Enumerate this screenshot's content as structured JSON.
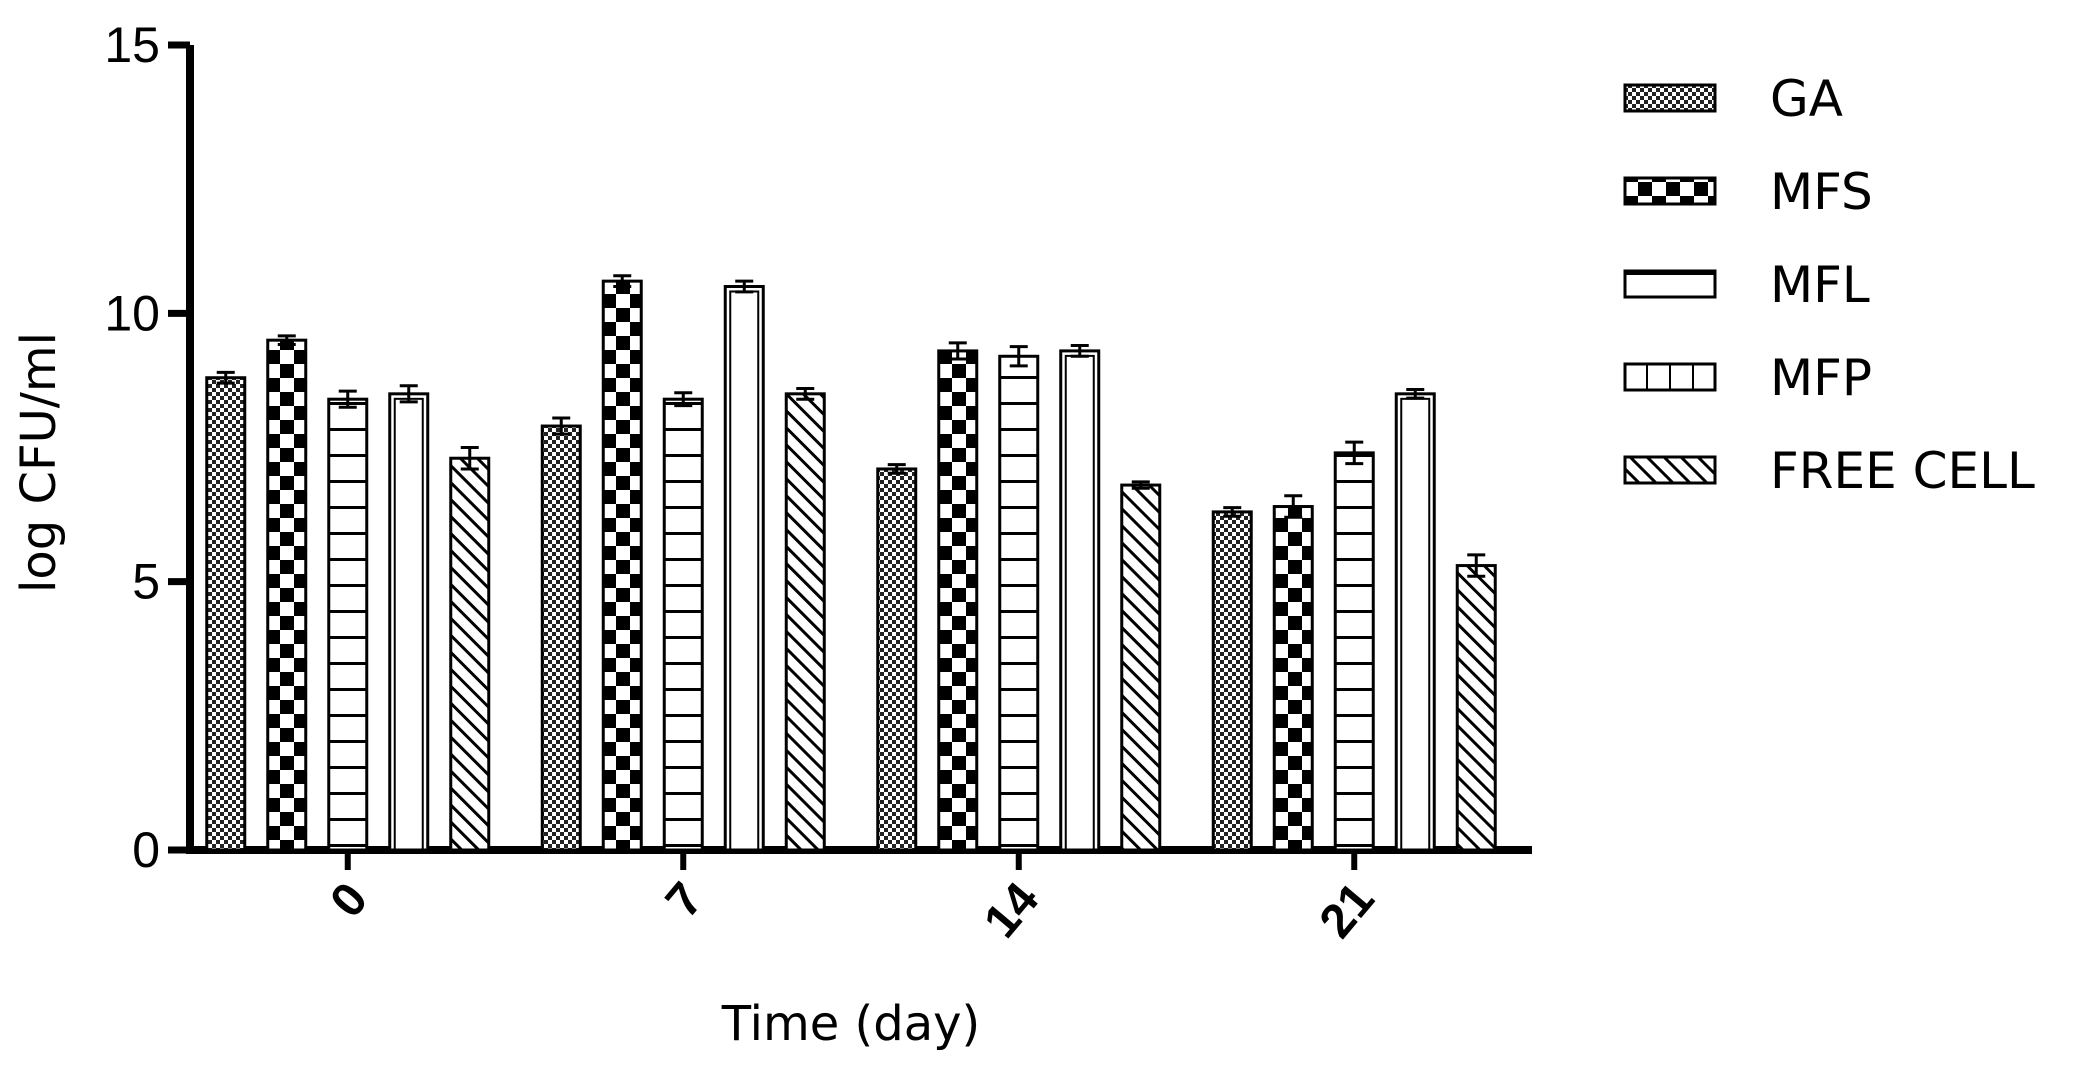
{
  "chart_data": {
    "type": "bar",
    "title": "",
    "xlabel": "Time (day)",
    "ylabel": "log CFU/ml",
    "ylim": [
      0,
      15
    ],
    "yticks": [
      "0",
      "5",
      "10",
      "15"
    ],
    "categories": [
      "0",
      "7",
      "14",
      "21"
    ],
    "grid": false,
    "legend_position": "right",
    "error_bars": true,
    "series": [
      {
        "name": "GA",
        "values": [
          8.8,
          7.9,
          7.1,
          6.3
        ],
        "errors": [
          0.1,
          0.15,
          0.08,
          0.08
        ],
        "pattern": "checker-fine"
      },
      {
        "name": "MFS",
        "values": [
          9.5,
          10.6,
          9.3,
          6.4
        ],
        "errors": [
          0.08,
          0.1,
          0.15,
          0.2
        ],
        "pattern": "checker-coarse"
      },
      {
        "name": "MFL",
        "values": [
          8.4,
          8.4,
          9.2,
          7.4
        ],
        "errors": [
          0.15,
          0.12,
          0.18,
          0.2
        ],
        "pattern": "horizontal-lines"
      },
      {
        "name": "MFP",
        "values": [
          8.5,
          10.5,
          9.3,
          8.5
        ],
        "errors": [
          0.15,
          0.1,
          0.1,
          0.08
        ],
        "pattern": "vertical-lines"
      },
      {
        "name": "FREE CELL",
        "values": [
          7.3,
          8.5,
          6.8,
          5.3
        ],
        "errors": [
          0.2,
          0.1,
          0.06,
          0.2
        ],
        "pattern": "diagonal"
      }
    ],
    "colors": {
      "ink": "#000000",
      "background": "#ffffff",
      "checker_fine_dark": "#333333"
    }
  }
}
